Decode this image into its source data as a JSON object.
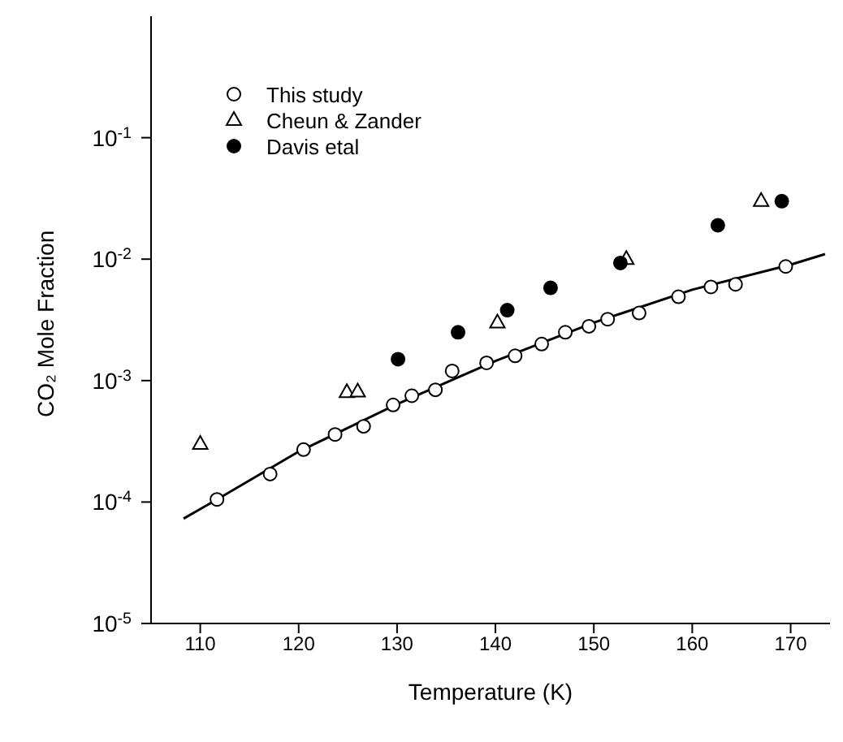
{
  "chart_data": {
    "type": "scatter",
    "xlabel": "Temperature (K)",
    "ylabel": "CO₂ Mole Fraction",
    "log": "y",
    "xlim": [
      105,
      174
    ],
    "xticks": [
      110,
      120,
      130,
      140,
      150,
      160,
      170
    ],
    "ylim": [
      1e-05,
      1
    ],
    "yticks": [
      {
        "value": 1e-05,
        "label": "10$^{-5}$"
      },
      {
        "value": 0.0001,
        "label": "10$^{-4}$"
      },
      {
        "value": 0.001,
        "label": "10$^{-3}$"
      },
      {
        "value": 0.01,
        "label": "10$^{-2}$"
      },
      {
        "value": 0.1,
        "label": "10$^{-1}$"
      }
    ],
    "grid": false,
    "legend": "top left",
    "series": [
      {
        "name": "This study",
        "marker": "circle",
        "color": "#ffffff",
        "x": [
          111.7,
          117.1,
          120.5,
          123.7,
          126.6,
          129.6,
          131.5,
          133.9,
          135.6,
          139.1,
          142.0,
          144.7,
          147.1,
          149.5,
          151.4,
          154.6,
          158.6,
          161.9,
          164.4,
          169.5
        ],
        "values": [
          0.000105,
          0.00017,
          0.00027,
          0.00036,
          0.00042,
          0.00063,
          0.00075,
          0.00084,
          0.0012,
          0.0014,
          0.0016,
          0.002,
          0.0025,
          0.0028,
          0.0032,
          0.0036,
          0.0049,
          0.0059,
          0.0062,
          0.0087
        ]
      },
      {
        "name": "Cheun & Zander",
        "marker": "triangle",
        "color": "#ffffff",
        "x": [
          110.0,
          124.9,
          126.0,
          140.2,
          153.3,
          167.0
        ],
        "values": [
          0.0003,
          0.0008,
          0.00081,
          0.003,
          0.01,
          0.03
        ]
      },
      {
        "name": "Davis etal",
        "marker": "circle",
        "color": "#000000",
        "x": [
          130.1,
          136.2,
          141.2,
          145.6,
          152.7,
          162.6,
          169.1
        ],
        "values": [
          0.0015,
          0.0025,
          0.0038,
          0.0058,
          0.0093,
          0.019,
          0.03
        ]
      },
      {
        "type": "line",
        "marker": "none",
        "line_style": "solid",
        "color": "#000000",
        "x": [
          108.3,
          111.7,
          120,
          130,
          140,
          150,
          160,
          170,
          173.5
        ],
        "values": [
          7.3e-05,
          0.000105,
          0.00026,
          0.00064,
          0.00145,
          0.003,
          0.0056,
          0.009,
          0.011
        ]
      }
    ]
  }
}
